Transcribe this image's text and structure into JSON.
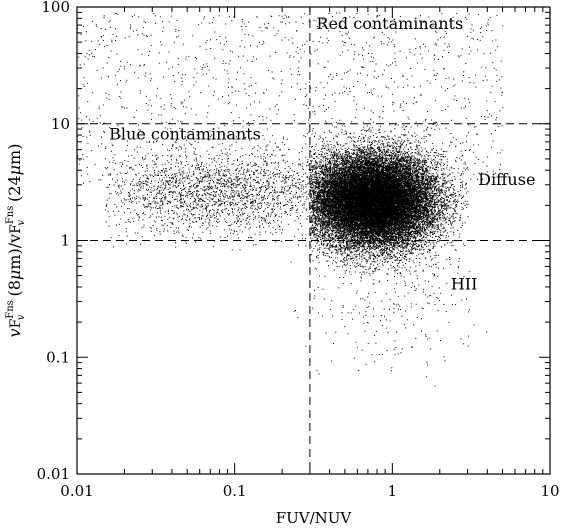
{
  "chart_data": {
    "type": "scatter",
    "title": "",
    "x_scale": "log",
    "y_scale": "log",
    "xlim": [
      0.01,
      10
    ],
    "ylim": [
      0.01,
      100
    ],
    "x_ticks": [
      {
        "value": 0.01,
        "label": "0.01"
      },
      {
        "value": 0.1,
        "label": "0.1"
      },
      {
        "value": 1,
        "label": "1"
      },
      {
        "value": 10,
        "label": "10"
      }
    ],
    "y_ticks": [
      {
        "value": 0.01,
        "label": "0.01"
      },
      {
        "value": 0.1,
        "label": "0.1"
      },
      {
        "value": 1,
        "label": "1"
      },
      {
        "value": 10,
        "label": "10"
      },
      {
        "value": 100,
        "label": "100"
      }
    ],
    "xlabel": "FUV/NUV",
    "ylabel": {
      "p1": "v",
      "p1_sup": "Fns",
      "p1_sub": "v",
      "p2": "(8",
      "mu": "μ",
      "p3": "m)/v",
      "p4_sup": "Fns",
      "p4_sub": "v",
      "p5": "(24",
      "p6": "m)"
    },
    "reference_lines": {
      "vertical_x": 0.3,
      "horizontal_y": [
        1,
        10
      ],
      "style": "dashed"
    },
    "annotations": [
      {
        "id": "red",
        "text": "Red contaminants",
        "x": 0.33,
        "y": 65
      },
      {
        "id": "blue",
        "text": "Blue contaminants",
        "x": 0.016,
        "y": 7.3
      },
      {
        "id": "diffuse",
        "text": "Diffuse",
        "x": 3.5,
        "y": 3.0
      },
      {
        "id": "hii",
        "text": "HII",
        "x": 2.35,
        "y": 0.38
      }
    ],
    "point_color": "#000000",
    "series": [
      {
        "distribution": "dense cloud",
        "n_points": 26000,
        "center": {
          "x": 0.75,
          "y": 2.2
        },
        "spread_dex": {
          "x": 0.2,
          "y": 0.2
        },
        "x_range": [
          0.3,
          3
        ],
        "y_range": [
          0.3,
          12
        ]
      },
      {
        "distribution": "blue tail",
        "n_points": 2200,
        "center": {
          "x": 0.08,
          "y": 2.6
        },
        "spread_dex": {
          "x": 0.4,
          "y": 0.18
        },
        "x_range": [
          0.015,
          0.35
        ],
        "y_range": [
          0.8,
          8
        ]
      },
      {
        "distribution": "sparse scatter",
        "n_points": 1300,
        "x_range": [
          0.01,
          5
        ],
        "y_range": [
          3,
          90
        ]
      },
      {
        "distribution": "low outliers",
        "n_points": 250,
        "center": {
          "x": 1.0,
          "y": 0.3
        },
        "spread_dex": {
          "x": 0.3,
          "y": 0.3
        },
        "x_range": [
          0.2,
          4
        ],
        "y_range": [
          0.03,
          1
        ]
      }
    ]
  }
}
